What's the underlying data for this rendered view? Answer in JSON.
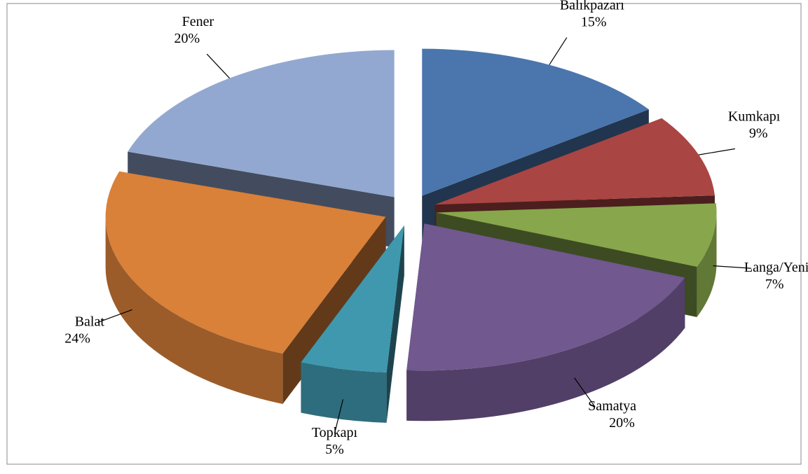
{
  "chart_data": {
    "type": "pie3d",
    "categories": [
      "Balıkpazarı",
      "Kumkapı",
      "Langa/Yenikapı",
      "Samatya",
      "Topkapı",
      "Balat",
      "Fener"
    ],
    "values": [
      15,
      9,
      7,
      20,
      5,
      24,
      20
    ],
    "value_labels": [
      "15%",
      "9%",
      "7%",
      "20%",
      "5%",
      "24%",
      "20%"
    ],
    "colors": [
      "#4a76ad",
      "#a94543",
      "#88a64b",
      "#71588f",
      "#4098ae",
      "#d98039",
      "#93a8d0"
    ]
  }
}
